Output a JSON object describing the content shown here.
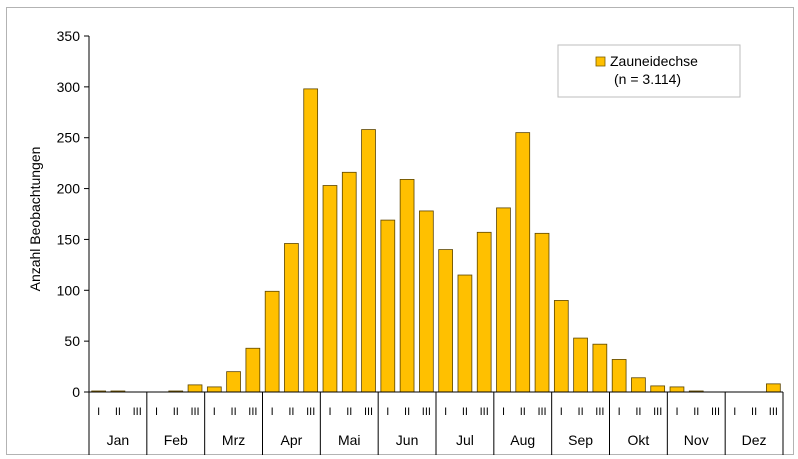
{
  "chart_data": {
    "type": "bar",
    "ylabel": "Anzahl Beobachtungen",
    "ylim": [
      0,
      350
    ],
    "yticks": [
      0,
      50,
      100,
      150,
      200,
      250,
      300,
      350
    ],
    "months": [
      "Jan",
      "Feb",
      "Mrz",
      "Apr",
      "Mai",
      "Jun",
      "Jul",
      "Aug",
      "Sep",
      "Okt",
      "Nov",
      "Dez"
    ],
    "decade_labels": [
      "I",
      "II",
      "III"
    ],
    "categories": [
      "Jan I",
      "Jan II",
      "Jan III",
      "Feb I",
      "Feb II",
      "Feb III",
      "Mrz I",
      "Mrz II",
      "Mrz III",
      "Apr I",
      "Apr II",
      "Apr III",
      "Mai I",
      "Mai II",
      "Mai III",
      "Jun I",
      "Jun II",
      "Jun III",
      "Jul I",
      "Jul II",
      "Jul III",
      "Aug I",
      "Aug II",
      "Aug III",
      "Sep I",
      "Sep II",
      "Sep III",
      "Okt I",
      "Okt II",
      "Okt III",
      "Nov I",
      "Nov II",
      "Nov III",
      "Dez I",
      "Dez II",
      "Dez III"
    ],
    "series": [
      {
        "name": "Zauneidechse",
        "color": "#FFC000",
        "values": [
          1,
          1,
          0,
          0,
          1,
          7,
          5,
          20,
          43,
          99,
          146,
          298,
          203,
          216,
          258,
          169,
          209,
          178,
          140,
          115,
          157,
          181,
          255,
          156,
          90,
          53,
          47,
          32,
          14,
          6,
          5,
          1,
          0,
          0,
          0,
          8
        ]
      }
    ],
    "legend": {
      "position": "top-right",
      "label": "Zauneidechse",
      "sublabel": "(n = 3.114)"
    },
    "grid": false
  }
}
